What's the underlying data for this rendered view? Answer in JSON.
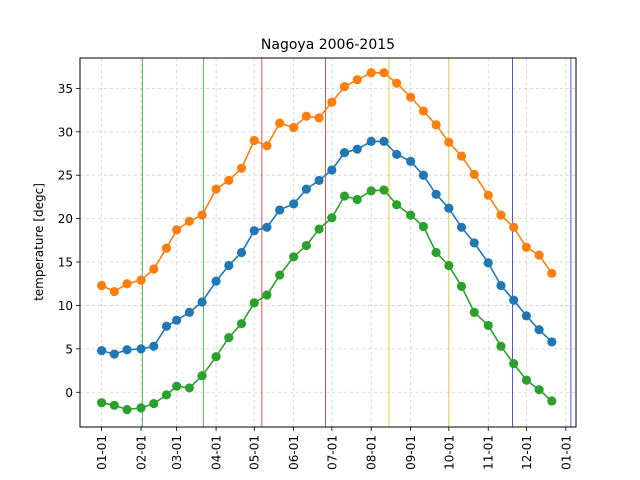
{
  "chart_data": {
    "type": "line",
    "title": "Nagoya 2006-2015",
    "xlabel": "",
    "ylabel": "temperature [degc]",
    "x_tick_labels": [
      "01-01",
      "02-01",
      "03-01",
      "04-01",
      "05-01",
      "06-01",
      "07-01",
      "08-01",
      "09-01",
      "10-01",
      "11-01",
      "12-01",
      "01-01"
    ],
    "x_tick_days": [
      0,
      31,
      59,
      90,
      120,
      151,
      181,
      212,
      243,
      273,
      304,
      334,
      365
    ],
    "xlim": [
      -17,
      373
    ],
    "ylim": [
      -4,
      38.5
    ],
    "y_ticks": [
      0,
      5,
      10,
      15,
      20,
      25,
      30,
      35
    ],
    "grid": true,
    "legend": "none",
    "x_days": [
      0,
      10,
      20,
      31,
      41,
      51,
      59,
      69,
      79,
      90,
      100,
      110,
      120,
      130,
      140,
      151,
      161,
      171,
      181,
      191,
      201,
      212,
      222,
      232,
      243,
      253,
      263,
      273,
      283,
      293,
      304,
      314,
      324,
      334,
      344,
      354
    ],
    "series": [
      {
        "color": "#1f77b4",
        "values": [
          4.8,
          4.4,
          4.9,
          5.0,
          5.3,
          7.6,
          8.3,
          9.2,
          10.4,
          12.8,
          14.6,
          16.1,
          18.6,
          19.0,
          21.0,
          21.7,
          23.4,
          24.4,
          25.6,
          27.6,
          28.0,
          28.9,
          28.9,
          27.4,
          26.6,
          25.0,
          22.8,
          21.2,
          19.0,
          17.2,
          14.9,
          12.3,
          10.6,
          8.8,
          7.2,
          5.8
        ]
      },
      {
        "color": "#ff7f0e",
        "values": [
          12.3,
          11.6,
          12.5,
          12.9,
          14.2,
          16.6,
          18.7,
          19.7,
          20.4,
          23.4,
          24.4,
          25.8,
          29.0,
          28.4,
          31.0,
          30.5,
          31.8,
          31.6,
          33.4,
          35.2,
          36.0,
          36.8,
          36.8,
          35.6,
          34.0,
          32.4,
          30.8,
          28.8,
          27.2,
          25.1,
          22.7,
          20.4,
          19.0,
          16.7,
          15.8,
          13.7
        ]
      },
      {
        "color": "#2ca02c",
        "values": [
          -1.2,
          -1.5,
          -2.0,
          -1.8,
          -1.3,
          -0.3,
          0.7,
          0.5,
          1.9,
          4.1,
          6.3,
          7.9,
          10.3,
          11.2,
          13.5,
          15.6,
          16.9,
          18.8,
          20.1,
          22.6,
          22.2,
          23.2,
          23.3,
          21.6,
          20.4,
          19.1,
          16.1,
          14.6,
          12.2,
          9.2,
          7.7,
          5.3,
          3.3,
          1.4,
          0.3,
          -1.0
        ]
      }
    ],
    "vertical_lines": [
      {
        "x": 32,
        "color": "#2ca02c"
      },
      {
        "x": 80,
        "color": "#2ca02c"
      },
      {
        "x": 126,
        "color": "#d62728"
      },
      {
        "x": 176,
        "color": "#d62728"
      },
      {
        "x": 226,
        "color": "#d4c41a"
      },
      {
        "x": 273,
        "color": "#d4c41a"
      },
      {
        "x": 323,
        "color": "#2a2ae0"
      },
      {
        "x": 369,
        "color": "#2a2ae0"
      }
    ]
  }
}
